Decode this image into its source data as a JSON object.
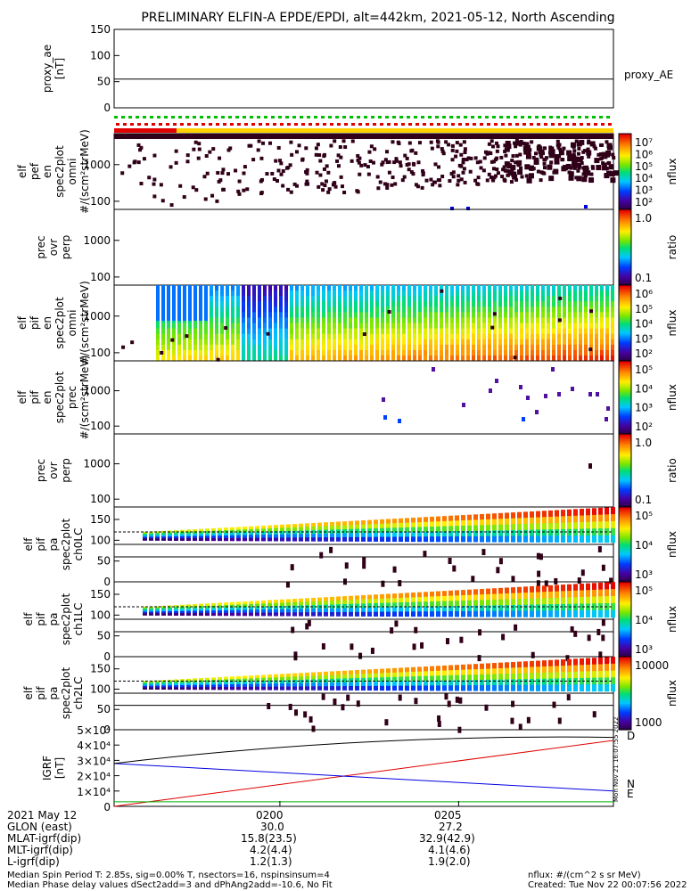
{
  "title": "PRELIMINARY ELFIN-A EPDE/EPDI, alt=442km, 2021-05-12, North Ascending",
  "chart_data": [
    {
      "type": "line",
      "panel": "proxy_ae",
      "ylabel": [
        "proxy_ae",
        "[nT]"
      ],
      "yticks": [
        "150",
        "100",
        "50",
        "0"
      ],
      "ylim": [
        0,
        150
      ],
      "series": [
        {
          "name": "proxy_AE",
          "values": [
            55,
            55
          ]
        }
      ]
    },
    {
      "type": "heatmap",
      "panel": "elf_pef_en_spec2plot_omni",
      "ylabel": [
        "elf",
        "pef",
        "en",
        "spec2plot",
        "omni",
        "#/(scm²strMeV)"
      ],
      "yticks": [
        "1000",
        "100"
      ],
      "ylim": [
        60,
        7000
      ],
      "log": true,
      "colorbar": {
        "label": "nflux",
        "ticks": [
          "10⁷",
          "10⁶",
          "10⁵",
          "10⁴",
          "10³",
          "10²"
        ]
      }
    },
    {
      "type": "heatmap",
      "panel": "prec_ovr_perp_e",
      "ylabel": [
        "prec",
        "ovr",
        "perp"
      ],
      "yticks": [
        "1000",
        "100"
      ],
      "ylim": [
        60,
        7000
      ],
      "log": true,
      "colorbar": {
        "label": "ratio",
        "ticks": [
          "1.0",
          "0.1"
        ]
      }
    },
    {
      "type": "heatmap",
      "panel": "elf_pif_en_spec2plot_omni",
      "ylabel": [
        "elf",
        "pif",
        "en",
        "spec2plot",
        "omni",
        "#/(scm²strMeV)"
      ],
      "yticks": [
        "1000",
        "100"
      ],
      "ylim": [
        60,
        7000
      ],
      "log": true,
      "colorbar": {
        "label": "nflux",
        "ticks": [
          "10⁶",
          "10⁵",
          "10⁴",
          "10³",
          "10²"
        ]
      }
    },
    {
      "type": "heatmap",
      "panel": "elf_pif_en_spec2plot_prec",
      "ylabel": [
        "elf",
        "pif",
        "en",
        "spec2plot",
        "prec",
        "#/(scm²strMeV)"
      ],
      "yticks": [
        "1000",
        "100"
      ],
      "ylim": [
        60,
        7000
      ],
      "log": true,
      "colorbar": {
        "label": "nflux",
        "ticks": [
          "10⁵",
          "10⁴",
          "10³",
          "10²"
        ]
      }
    },
    {
      "type": "heatmap",
      "panel": "prec_ovr_perp_i",
      "ylabel": [
        "prec",
        "ovr",
        "perp"
      ],
      "yticks": [
        "1000",
        "100"
      ],
      "ylim": [
        60,
        7000
      ],
      "log": true,
      "colorbar": {
        "label": "ratio",
        "ticks": [
          "1.0",
          "0.1"
        ]
      }
    },
    {
      "type": "heatmap",
      "panel": "elf_pif_pa_spec2plot_ch0LC",
      "ylabel": [
        "elf",
        "pif",
        "pa",
        "spec2plot",
        "ch0LC"
      ],
      "yticks": [
        "150",
        "100",
        "50",
        "0"
      ],
      "ylim": [
        0,
        180
      ],
      "colorbar": {
        "label": "nflux",
        "ticks": [
          "10⁵",
          "10⁴",
          "10³"
        ]
      }
    },
    {
      "type": "heatmap",
      "panel": "elf_pif_pa_spec2plot_ch1LC",
      "ylabel": [
        "elf",
        "pif",
        "pa",
        "spec2plot",
        "ch1LC"
      ],
      "yticks": [
        "150",
        "100",
        "50",
        "0"
      ],
      "ylim": [
        0,
        180
      ],
      "colorbar": {
        "label": "nflux",
        "ticks": [
          "10⁵",
          "10⁴",
          "10³"
        ]
      }
    },
    {
      "type": "heatmap",
      "panel": "elf_pif_pa_spec2plot_ch2LC",
      "ylabel": [
        "elf",
        "pif",
        "pa",
        "spec2plot",
        "ch2LC"
      ],
      "yticks": [
        "150",
        "100",
        "50",
        "0"
      ],
      "ylim": [
        0,
        180
      ],
      "colorbar": {
        "label": "nflux",
        "ticks": [
          "10000",
          "1000"
        ]
      }
    },
    {
      "type": "line",
      "panel": "igrf",
      "ylabel": [
        "IGRF",
        "[nT]"
      ],
      "yticks": [
        "5×10⁴",
        "4×10⁴",
        "3×10⁴",
        "2×10⁴",
        "1×10⁴",
        "0"
      ],
      "ylim": [
        0,
        50000
      ],
      "x": [
        0,
        1
      ],
      "series": [
        {
          "name": "D",
          "color": "#e00000",
          "values": [
            0,
            43000
          ]
        },
        {
          "name": "N",
          "color": "#0000e0",
          "values": [
            28000,
            10000
          ]
        },
        {
          "name": "E",
          "color": "#00b000",
          "values": [
            3000,
            3000
          ]
        },
        {
          "name": "",
          "color": "#000000",
          "values": [
            28000,
            45000
          ]
        }
      ],
      "side_labels": [
        "D",
        "N",
        "E"
      ]
    }
  ],
  "xticks": [
    {
      "label": "0200",
      "glon": "30.0",
      "mlat": "15.8(23.5)",
      "mlt": "4.2(4.4)",
      "l": "1.2(1.3)"
    },
    {
      "label": "0205",
      "glon": "27.2",
      "mlat": "32.9(42.9)",
      "mlt": "4.1(4.6)",
      "l": "1.9(2.0)"
    }
  ],
  "footer_labels": {
    "date": "2021 May 12",
    "glon": "GLON (east)",
    "mlat": "MLAT-igrf(dip)",
    "mlt": "MLT-igrf(dip)",
    "l": "L-igrf(dip)"
  },
  "notes": {
    "line1": "Median Spin Period T: 2.85s, sig=0.00% T, nsectors=16, nspinsinsum=4",
    "line2": "Median Phase delay values dSect2add=3 and dPhAng2add=-10.6, No Fit",
    "units": "nflux: #/(cm^2 s sr MeV)",
    "created": "Created: Tue Nov 22 00:07:56 2022",
    "stamp": "Mon Nov 21 16:07:55 2022"
  },
  "colors": {
    "red": "#e00000",
    "green": "#00c000",
    "yellow": "#ffd200",
    "dark": "#300018"
  }
}
